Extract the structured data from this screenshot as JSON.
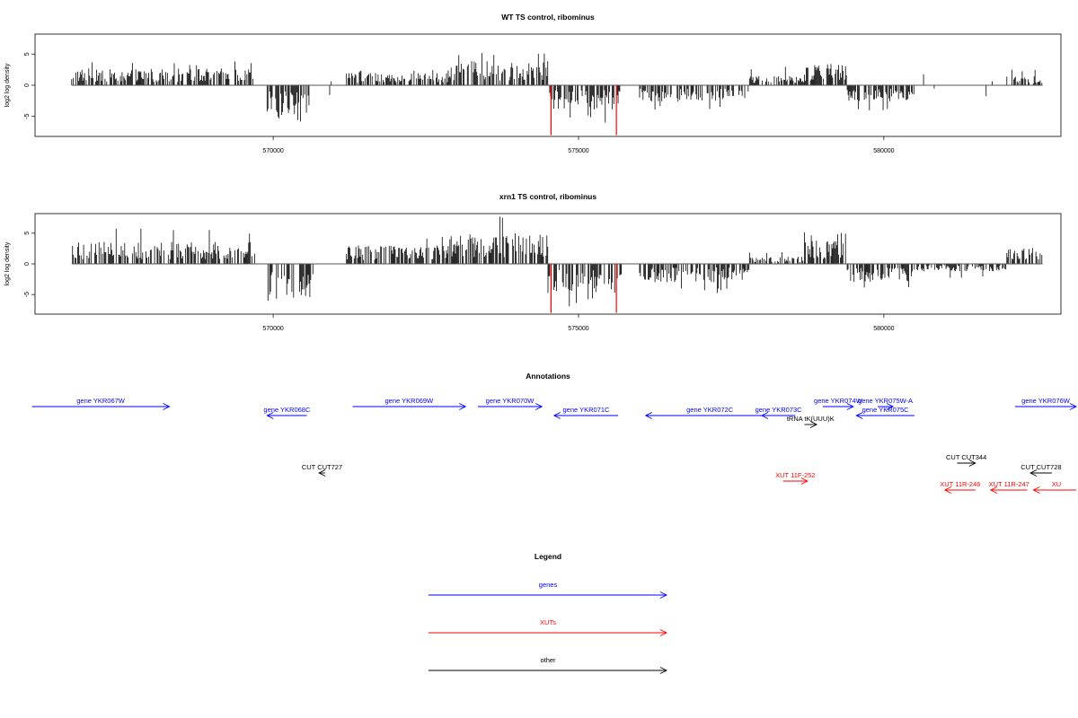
{
  "figure": {
    "panels": [
      {
        "title": "WT TS control, ribominus",
        "ylabel": "log2 log density",
        "xlim": [
          566100,
          582900
        ],
        "ylim": [
          -8.2,
          8.2
        ],
        "xticks": [
          570000,
          575000,
          580000
        ],
        "yticks": [
          5,
          0,
          -5
        ],
        "highlight_positions": [
          574550,
          575620
        ]
      },
      {
        "title": "xrn1 TS control, ribominus",
        "ylabel": "log2 log density",
        "xlim": [
          566100,
          582900
        ],
        "ylim": [
          -8.2,
          8.2
        ],
        "xticks": [
          570000,
          575000,
          580000
        ],
        "yticks": [
          5,
          0,
          -5
        ],
        "highlight_positions": [
          574550,
          575620
        ]
      }
    ],
    "annotations": {
      "title": "Annotations",
      "colors": {
        "genes": "#0000ff",
        "XUTs": "#ff0000",
        "other": "#000000"
      },
      "features": [
        {
          "label": "gene YKR067W",
          "type": "genes",
          "start": 566050,
          "end": 568300,
          "strand": "+",
          "row": 0
        },
        {
          "label": "gene YKR068C",
          "type": "genes",
          "start": 569900,
          "end": 570550,
          "strand": "-",
          "row": 1
        },
        {
          "label": "gene YKR069W",
          "type": "genes",
          "start": 571300,
          "end": 573150,
          "strand": "+",
          "row": 0
        },
        {
          "label": "gene YKR070W",
          "type": "genes",
          "start": 573350,
          "end": 574400,
          "strand": "+",
          "row": 0
        },
        {
          "label": "gene YKR071C",
          "type": "genes",
          "start": 574600,
          "end": 575650,
          "strand": "-",
          "row": 1
        },
        {
          "label": "gene YKR072C",
          "type": "genes",
          "start": 576100,
          "end": 578200,
          "strand": "-",
          "row": 1
        },
        {
          "label": "gene YKR073C",
          "type": "genes",
          "start": 578000,
          "end": 578550,
          "strand": "-",
          "row": 1
        },
        {
          "label": "gene YKR074W",
          "type": "genes",
          "start": 579000,
          "end": 579500,
          "strand": "+",
          "row": 0
        },
        {
          "label": "gene YKR075W-A",
          "type": "genes",
          "start": 579900,
          "end": 580150,
          "strand": "+",
          "row": 0
        },
        {
          "label": "gene YKR075C",
          "type": "genes",
          "start": 579550,
          "end": 580500,
          "strand": "-",
          "row": 1
        },
        {
          "label": "gene YKR076W",
          "type": "genes",
          "start": 582150,
          "end": 583300,
          "strand": "+",
          "row": 0
        },
        {
          "label": "tRNA tK(UUU)K",
          "type": "other",
          "start": 578700,
          "end": 578900,
          "strand": "+",
          "row": 2
        },
        {
          "label": "CUT CUT727",
          "type": "other",
          "start": 570750,
          "end": 570850,
          "strand": "-",
          "row": 4
        },
        {
          "label": "CUT CUT344",
          "type": "other",
          "start": 581200,
          "end": 581500,
          "strand": "+",
          "row": 3
        },
        {
          "label": "CUT CUT728",
          "type": "other",
          "start": 582400,
          "end": 582750,
          "strand": "-",
          "row": 4
        },
        {
          "label": "XUT 11F-252",
          "type": "XUTs",
          "start": 578350,
          "end": 578750,
          "strand": "+",
          "row": 5
        },
        {
          "label": "XUT 11R-246",
          "type": "XUTs",
          "start": 581000,
          "end": 581500,
          "strand": "-",
          "row": 6
        },
        {
          "label": "XUT 11R-247",
          "type": "XUTs",
          "start": 581750,
          "end": 582350,
          "strand": "-",
          "row": 6
        },
        {
          "label": "XU",
          "type": "XUTs",
          "start": 582450,
          "end": 583300,
          "strand": "-",
          "row": 6
        }
      ]
    },
    "legend": {
      "title": "Legend",
      "items": [
        {
          "label": "genes",
          "color": "#0000ff"
        },
        {
          "label": "XUTs",
          "color": "#ff0000"
        },
        {
          "label": "other",
          "color": "#000000"
        }
      ]
    }
  },
  "chart_data": [
    {
      "type": "bar",
      "title": "WT TS control, ribominus",
      "xlabel": "",
      "ylabel": "log2 log density",
      "xlim": [
        566100,
        582900
      ],
      "ylim": [
        -8.2,
        8.2
      ],
      "grid": false,
      "x_start": 566700,
      "x_end": 582600,
      "regions": [
        {
          "from": 566700,
          "to": 569700,
          "sign": 1,
          "mean": 1.8,
          "peak": 4.0
        },
        {
          "from": 569900,
          "to": 570600,
          "sign": -1,
          "mean": 3.2,
          "peak": 6.0
        },
        {
          "from": 570600,
          "to": 571200,
          "sign": 0,
          "mean": 0.0,
          "peak": 0.0
        },
        {
          "from": 571200,
          "to": 572900,
          "sign": 1,
          "mean": 1.3,
          "peak": 2.5
        },
        {
          "from": 572900,
          "to": 574500,
          "sign": 1,
          "mean": 2.6,
          "peak": 6.0
        },
        {
          "from": 574500,
          "to": 575700,
          "sign": -1,
          "mean": 2.6,
          "peak": 6.0
        },
        {
          "from": 575700,
          "to": 576000,
          "sign": 0,
          "mean": 0.0,
          "peak": 0.0
        },
        {
          "from": 576000,
          "to": 577800,
          "sign": -1,
          "mean": 1.8,
          "peak": 4.0
        },
        {
          "from": 577800,
          "to": 578700,
          "sign": 1,
          "mean": 1.0,
          "peak": 3.0
        },
        {
          "from": 578700,
          "to": 579400,
          "sign": 1,
          "mean": 2.3,
          "peak": 4.2
        },
        {
          "from": 579400,
          "to": 580500,
          "sign": -1,
          "mean": 1.8,
          "peak": 4.5
        },
        {
          "from": 580500,
          "to": 582000,
          "sign": 0,
          "mean": 0.0,
          "peak": 0.0
        },
        {
          "from": 582000,
          "to": 582600,
          "sign": 1,
          "mean": 1.0,
          "peak": 2.5
        }
      ],
      "highlighted_signals": [
        {
          "x": 574550,
          "y": -8.0
        },
        {
          "x": 575620,
          "y": -8.0
        }
      ]
    },
    {
      "type": "bar",
      "title": "xrn1 TS control, ribominus",
      "xlabel": "",
      "ylabel": "log2 log density",
      "xlim": [
        566100,
        582900
      ],
      "ylim": [
        -8.2,
        8.2
      ],
      "grid": false,
      "x_start": 566700,
      "x_end": 582600,
      "regions": [
        {
          "from": 566700,
          "to": 569700,
          "sign": 1,
          "mean": 2.4,
          "peak": 6.0
        },
        {
          "from": 569900,
          "to": 570650,
          "sign": -1,
          "mean": 4.0,
          "peak": 8.0
        },
        {
          "from": 570650,
          "to": 571200,
          "sign": 0,
          "mean": 0.0,
          "peak": 0.0
        },
        {
          "from": 571200,
          "to": 572900,
          "sign": 1,
          "mean": 2.0,
          "peak": 5.0
        },
        {
          "from": 572900,
          "to": 574500,
          "sign": 1,
          "mean": 3.4,
          "peak": 8.0
        },
        {
          "from": 574500,
          "to": 575700,
          "sign": -1,
          "mean": 3.2,
          "peak": 7.0
        },
        {
          "from": 575700,
          "to": 576000,
          "sign": 0,
          "mean": 0.0,
          "peak": 0.0
        },
        {
          "from": 576000,
          "to": 577800,
          "sign": -1,
          "mean": 2.0,
          "peak": 5.0
        },
        {
          "from": 577800,
          "to": 578700,
          "sign": 1,
          "mean": 0.8,
          "peak": 2.0
        },
        {
          "from": 578700,
          "to": 579400,
          "sign": 1,
          "mean": 2.6,
          "peak": 5.5
        },
        {
          "from": 579400,
          "to": 580500,
          "sign": -1,
          "mean": 2.0,
          "peak": 4.5
        },
        {
          "from": 580500,
          "to": 582000,
          "sign": -1,
          "mean": 0.8,
          "peak": 2.5
        },
        {
          "from": 582000,
          "to": 582600,
          "sign": 1,
          "mean": 1.8,
          "peak": 4.5
        }
      ],
      "highlighted_signals": [
        {
          "x": 574550,
          "y": -8.0
        },
        {
          "x": 575620,
          "y": -8.0
        }
      ]
    }
  ]
}
